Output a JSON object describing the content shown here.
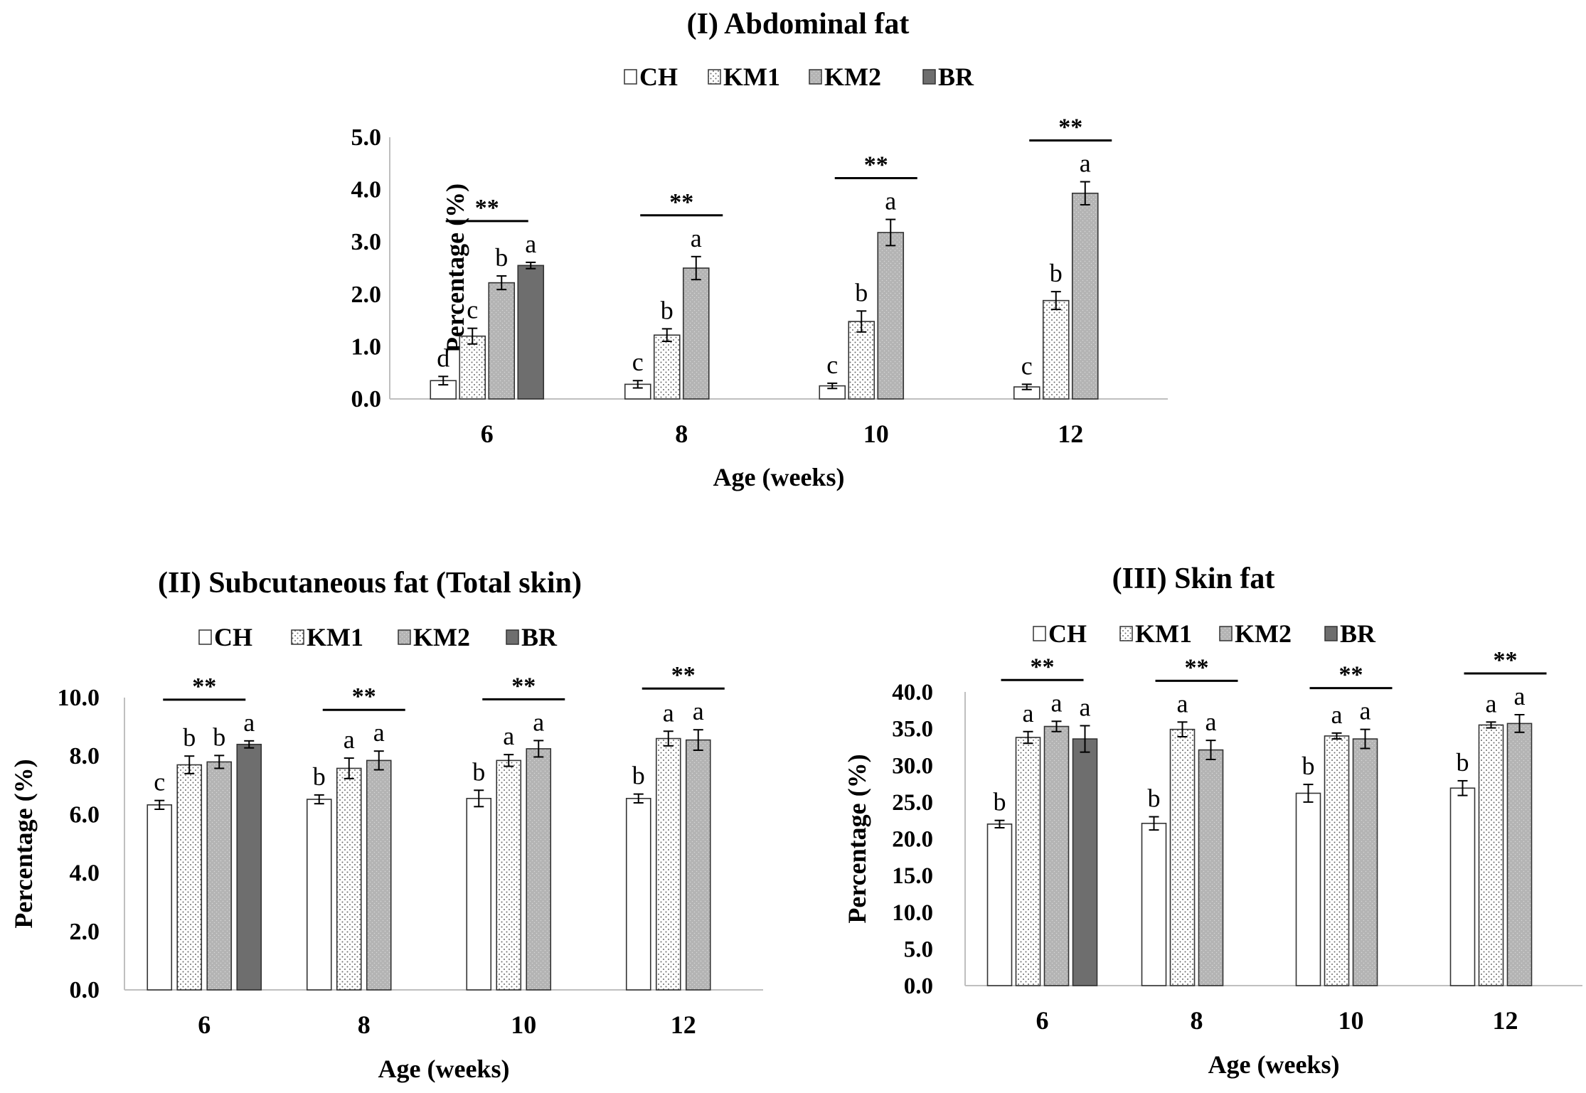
{
  "colors": {
    "CH": "#ffffff",
    "KM1": "#ffffff",
    "KM2": "#b4b4b4",
    "BR": "#6e6e6e",
    "axis": "#bfbfbf",
    "ink": "#000000"
  },
  "chart_data": [
    {
      "type": "bar",
      "title": "(I)  Abdominal fat",
      "xlabel": "Age (weeks)",
      "ylabel": "Percentage (%)",
      "ylim": [
        0,
        5
      ],
      "yticks": [
        "0.0",
        "1.0",
        "2.0",
        "3.0",
        "4.0",
        "5.0"
      ],
      "categories": [
        "6",
        "8",
        "10",
        "12"
      ],
      "legend": [
        "CH",
        "KM1",
        "KM2",
        "BR"
      ],
      "legend_position": "top",
      "series": [
        {
          "name": "CH",
          "pattern": "white",
          "values": [
            0.35,
            0.28,
            0.25,
            0.23
          ],
          "errors": [
            0.08,
            0.07,
            0.05,
            0.05
          ],
          "letters": [
            "d",
            "c",
            "c",
            "c"
          ]
        },
        {
          "name": "KM1",
          "pattern": "dots",
          "values": [
            1.2,
            1.22,
            1.48,
            1.88
          ],
          "errors": [
            0.15,
            0.12,
            0.2,
            0.17
          ],
          "letters": [
            "c",
            "b",
            "b",
            "b"
          ]
        },
        {
          "name": "KM2",
          "pattern": "gray",
          "values": [
            2.22,
            2.5,
            3.18,
            3.93
          ],
          "errors": [
            0.13,
            0.22,
            0.25,
            0.22
          ],
          "letters": [
            "b",
            "a",
            "a",
            "a"
          ]
        },
        {
          "name": "BR",
          "pattern": "dark",
          "values": [
            2.55,
            null,
            null,
            null
          ],
          "errors": [
            0.06,
            null,
            null,
            null
          ],
          "letters": [
            "a",
            "",
            "",
            ""
          ]
        }
      ],
      "significance": [
        "**",
        "**",
        "**",
        "**"
      ]
    },
    {
      "type": "bar",
      "title": "(II)  Subcutaneous fat (Total skin)",
      "xlabel": "Age (weeks)",
      "ylabel": "Percentage (%)",
      "ylim": [
        0,
        10
      ],
      "yticks": [
        "0.0",
        "2.0",
        "4.0",
        "6.0",
        "8.0",
        "10.0"
      ],
      "categories": [
        "6",
        "8",
        "10",
        "12"
      ],
      "legend": [
        "CH",
        "KM1",
        "KM2",
        "BR"
      ],
      "legend_position": "top",
      "series": [
        {
          "name": "CH",
          "pattern": "white",
          "values": [
            6.33,
            6.52,
            6.55,
            6.55
          ],
          "errors": [
            0.15,
            0.15,
            0.28,
            0.15
          ],
          "letters": [
            "c",
            "b",
            "b",
            "b"
          ]
        },
        {
          "name": "KM1",
          "pattern": "dots",
          "values": [
            7.7,
            7.58,
            7.85,
            8.6
          ],
          "errors": [
            0.3,
            0.35,
            0.2,
            0.25
          ],
          "letters": [
            "b",
            "a",
            "a",
            "a"
          ]
        },
        {
          "name": "KM2",
          "pattern": "gray",
          "values": [
            7.8,
            7.85,
            8.25,
            8.55
          ],
          "errors": [
            0.22,
            0.32,
            0.28,
            0.35
          ],
          "letters": [
            "b",
            "a",
            "a",
            "a"
          ]
        },
        {
          "name": "BR",
          "pattern": "dark",
          "values": [
            8.4,
            null,
            null,
            null
          ],
          "errors": [
            0.12,
            null,
            null,
            null
          ],
          "letters": [
            "a",
            "",
            "",
            ""
          ]
        }
      ],
      "significance": [
        "**",
        "**",
        "**",
        "**"
      ]
    },
    {
      "type": "bar",
      "title": "(III)  Skin fat",
      "xlabel": "Age (weeks)",
      "ylabel": "Percentage (%)",
      "ylim": [
        0,
        40
      ],
      "yticks": [
        "0.0",
        "5.0",
        "10.0",
        "15.0",
        "20.0",
        "25.0",
        "30.0",
        "35.0",
        "40.0"
      ],
      "categories": [
        "6",
        "8",
        "10",
        "12"
      ],
      "legend": [
        "CH",
        "KM1",
        "KM2",
        "BR"
      ],
      "legend_position": "top",
      "series": [
        {
          "name": "CH",
          "pattern": "white",
          "values": [
            22.0,
            22.1,
            26.2,
            26.9
          ],
          "errors": [
            0.5,
            0.9,
            1.2,
            1.0
          ],
          "letters": [
            "b",
            "b",
            "b",
            "b"
          ]
        },
        {
          "name": "KM1",
          "pattern": "dots",
          "values": [
            33.8,
            34.9,
            34.0,
            35.5
          ],
          "errors": [
            0.8,
            1.0,
            0.4,
            0.4
          ],
          "letters": [
            "a",
            "a",
            "a",
            "a"
          ]
        },
        {
          "name": "KM2",
          "pattern": "gray",
          "values": [
            35.3,
            32.1,
            33.6,
            35.7
          ],
          "errors": [
            0.7,
            1.3,
            1.3,
            1.2
          ],
          "letters": [
            "a",
            "a",
            "a",
            "a"
          ]
        },
        {
          "name": "BR",
          "pattern": "dark",
          "values": [
            33.6,
            null,
            null,
            null
          ],
          "errors": [
            1.8,
            null,
            null,
            null
          ],
          "letters": [
            "a",
            "",
            "",
            ""
          ]
        }
      ],
      "significance": [
        "**",
        "**",
        "**",
        "**"
      ]
    }
  ]
}
